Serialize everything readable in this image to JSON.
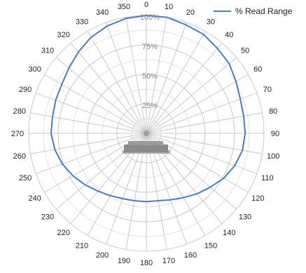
{
  "chart_data": {
    "type": "radar",
    "title": "",
    "legend": {
      "position": "top-right"
    },
    "radial_axis": {
      "range": [
        0,
        100
      ],
      "tick_labels": [
        "25%",
        "50%",
        "75%",
        "100%"
      ]
    },
    "angles": [
      0,
      10,
      20,
      30,
      40,
      50,
      60,
      70,
      80,
      90,
      100,
      110,
      120,
      130,
      140,
      150,
      160,
      170,
      180,
      190,
      200,
      210,
      220,
      230,
      240,
      250,
      260,
      270,
      280,
      290,
      300,
      310,
      320,
      330,
      340,
      350
    ],
    "angle_labels": [
      "0",
      "10",
      "20",
      "30",
      "40",
      "50",
      "60",
      "70",
      "80",
      "90",
      "100",
      "110",
      "120",
      "130",
      "140",
      "150",
      "160",
      "170",
      "180",
      "190",
      "200",
      "210",
      "220",
      "230",
      "240",
      "250",
      "260",
      "270",
      "280",
      "290",
      "300",
      "310",
      "320",
      "330",
      "340",
      "350"
    ],
    "grid": true,
    "series": [
      {
        "name": "% Read Range",
        "color": "#4a7ebb",
        "values": [
          100,
          100,
          98,
          97,
          94,
          92,
          88,
          85,
          84,
          84,
          83,
          80,
          76,
          71,
          67,
          63,
          60,
          58,
          58,
          58,
          59,
          61,
          64,
          68,
          72,
          76,
          79,
          81,
          81,
          82,
          83,
          86,
          90,
          94,
          97,
          99
        ]
      }
    ],
    "colors": {
      "grid": "#c8c8c8",
      "series": "#4a7ebb",
      "reader_body": "#8a8a8a"
    }
  }
}
